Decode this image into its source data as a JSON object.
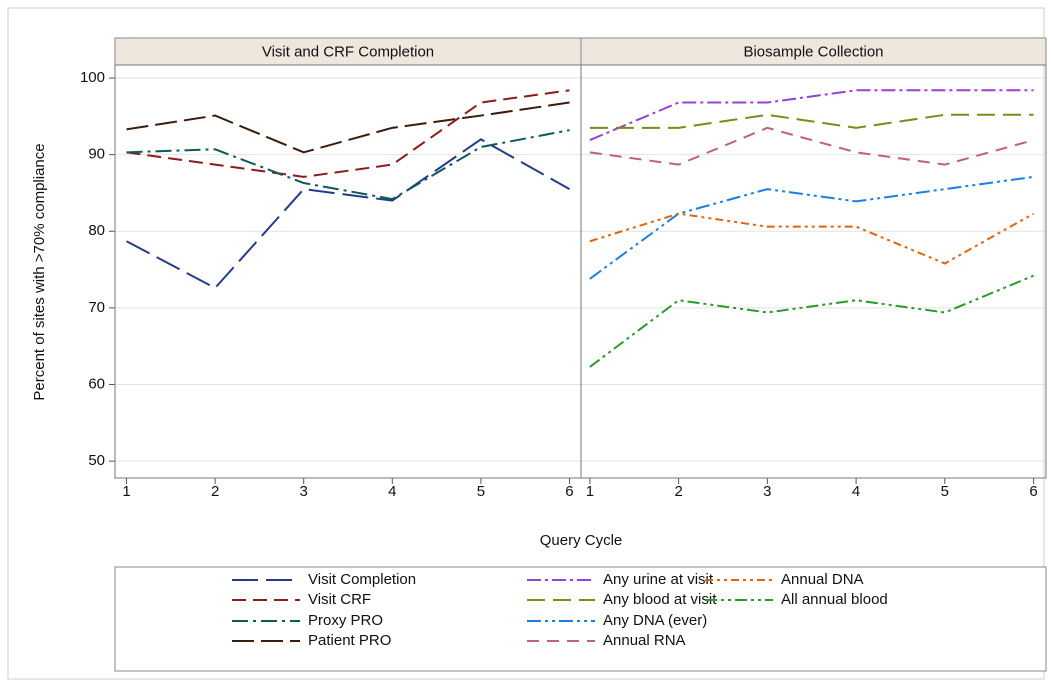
{
  "axes": {
    "ylabel": "Percent of sites with >70% compliance",
    "xlabel": "Query Cycle"
  },
  "chart_data": [
    {
      "type": "line",
      "title": "Visit and CRF Completion",
      "x": [
        1,
        2,
        3,
        4,
        5,
        6
      ],
      "xlim": [
        0.87,
        6.13
      ],
      "xticks": [
        1,
        2,
        3,
        4,
        5,
        6
      ],
      "ylim": [
        47.8,
        101.7
      ],
      "yticks": [
        50,
        60,
        70,
        80,
        90,
        100
      ],
      "grid": true,
      "series": [
        {
          "name": "Visit Completion",
          "color": "#243b8a",
          "dash": "26,8",
          "values": [
            78.7,
            72.6,
            85.5,
            84.0,
            92.0,
            85.5
          ]
        },
        {
          "name": "Visit CRF",
          "color": "#8e1b1b",
          "dash": "14,7",
          "values": [
            90.3,
            88.7,
            87.1,
            88.7,
            96.8,
            98.4
          ]
        },
        {
          "name": "Proxy PRO",
          "color": "#0f5858",
          "dash": "16,5,3,5",
          "values": [
            90.3,
            90.7,
            86.3,
            84.2,
            91.0,
            93.2
          ]
        },
        {
          "name": "Patient PRO",
          "color": "#3a1c0c",
          "dash": "22,7",
          "values": [
            93.3,
            95.1,
            90.3,
            93.5,
            95.1,
            96.8
          ]
        }
      ]
    },
    {
      "type": "line",
      "title": "Biosample Collection",
      "x": [
        1,
        2,
        3,
        4,
        5,
        6
      ],
      "xlim": [
        0.9,
        6.14
      ],
      "xticks": [
        1,
        2,
        3,
        4,
        5,
        6
      ],
      "ylim": [
        47.8,
        101.7
      ],
      "yticks": [
        50,
        60,
        70,
        80,
        90,
        100
      ],
      "grid": true,
      "series": [
        {
          "name": "Any urine at visit",
          "color": "#9a3fd6",
          "dash": "14,4,3,4",
          "values": [
            91.9,
            96.8,
            96.8,
            98.4,
            98.4,
            98.4
          ]
        },
        {
          "name": "Any blood at visit",
          "color": "#7d8a18",
          "dash": "18,8",
          "values": [
            93.5,
            93.5,
            95.2,
            93.5,
            95.2,
            95.2
          ]
        },
        {
          "name": "Any DNA (ever)",
          "color": "#1a7fe0",
          "dash": "14,4,3,4,3,4",
          "values": [
            73.8,
            82.3,
            85.5,
            83.9,
            85.5,
            87.1
          ]
        },
        {
          "name": "Annual RNA",
          "color": "#c0607f",
          "dash": "12,8",
          "values": [
            90.3,
            88.7,
            93.5,
            90.3,
            88.7,
            91.9
          ]
        },
        {
          "name": "Annual DNA",
          "color": "#e0640f",
          "dash": "8,4,3,4,3,4",
          "values": [
            78.7,
            82.3,
            80.6,
            80.6,
            75.8,
            82.3
          ]
        },
        {
          "name": "All annual blood",
          "color": "#2a9a2a",
          "dash": "12,4,3,4,3,4",
          "values": [
            62.3,
            71.0,
            69.4,
            71.0,
            69.4,
            74.2
          ]
        }
      ]
    }
  ]
}
